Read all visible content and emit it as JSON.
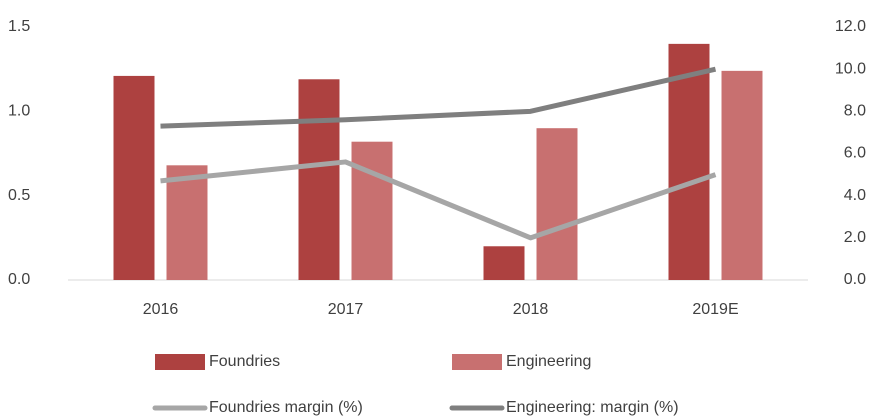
{
  "chart_data": {
    "type": "bar_line",
    "categories": [
      "2016",
      "2017",
      "2018",
      "2019E"
    ],
    "series": [
      {
        "name": "Foundries",
        "color": "#ad4140",
        "type": "bar",
        "values": [
          1.21,
          1.19,
          0.2,
          1.4
        ]
      },
      {
        "name": "Engineering",
        "color": "#c87070",
        "type": "bar",
        "values": [
          0.68,
          0.82,
          0.9,
          1.24
        ]
      },
      {
        "name": "Foundries margin (%)",
        "color": "#a6a6a6",
        "type": "line",
        "axis": "y2",
        "values": [
          4.7,
          5.6,
          2.0,
          5.0
        ]
      },
      {
        "name": "Engineering: margin (%)",
        "color": "#7f7f7f",
        "type": "line",
        "axis": "y2",
        "values": [
          7.3,
          7.6,
          8.0,
          10.0
        ]
      }
    ],
    "ylim": [
      0,
      1.5
    ],
    "yticks": [
      {
        "value": 0,
        "label": "0.0"
      },
      0.5,
      {
        "value": 1,
        "label": "1.0"
      },
      1.5
    ],
    "y2lim": [
      0,
      12
    ],
    "y2ticks": [
      {
        "value": 0,
        "label": "0.0"
      },
      {
        "value": 2,
        "label": "2.0"
      },
      {
        "value": 4,
        "label": "4.0"
      },
      {
        "value": 6,
        "label": "6.0"
      },
      {
        "value": 8,
        "label": "8.0"
      },
      {
        "value": 10,
        "label": "10.0"
      },
      {
        "value": 12,
        "label": "12.0"
      }
    ]
  }
}
